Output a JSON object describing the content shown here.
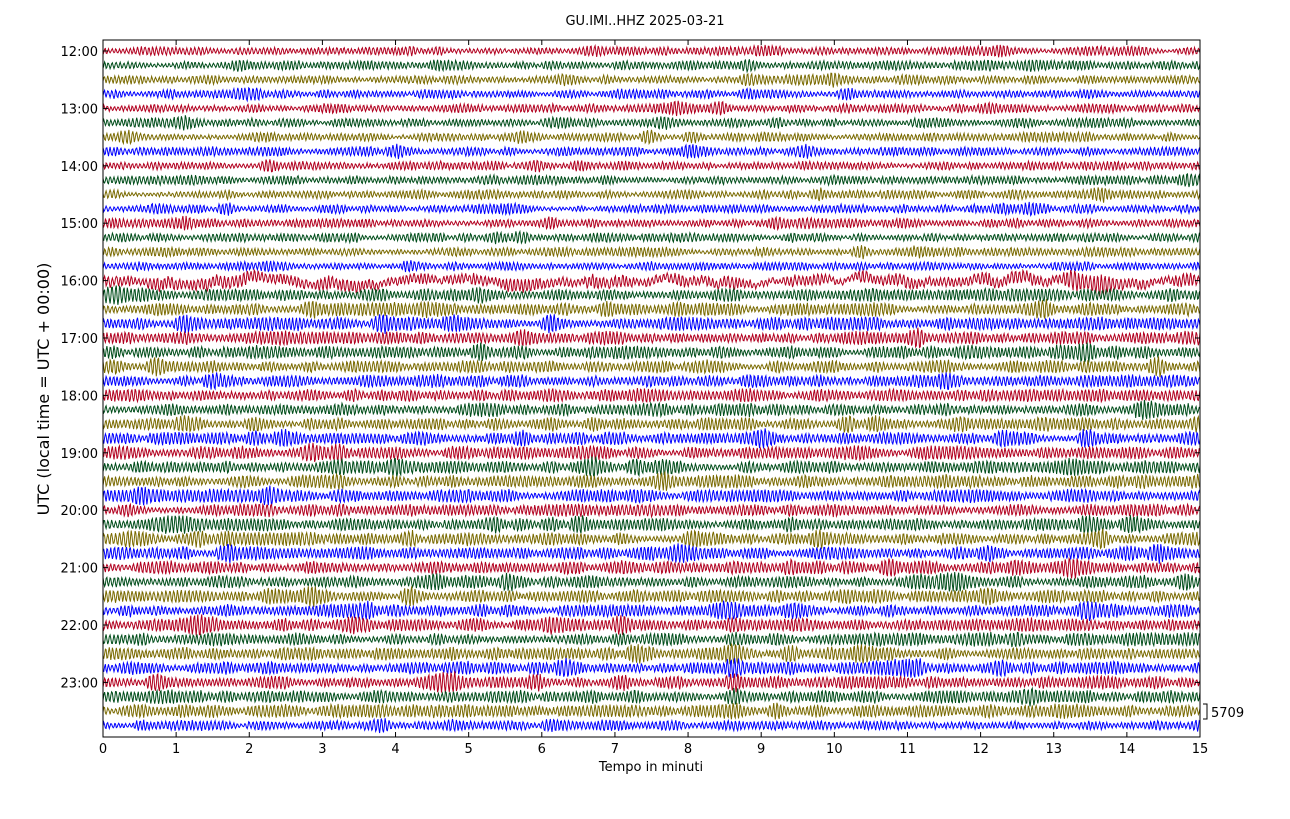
{
  "chart_data": {
    "type": "line",
    "title": "GU.IMI..HHZ 2025-03-21",
    "xlabel": "Tempo in minuti",
    "ylabel": "UTC (local time = UTC + 00:00)",
    "xlim": [
      0,
      15
    ],
    "x_ticks": [
      "0",
      "1",
      "2",
      "3",
      "4",
      "5",
      "6",
      "7",
      "8",
      "9",
      "10",
      "11",
      "12",
      "13",
      "14",
      "15"
    ],
    "y_tick_labels": [
      "12:00",
      "13:00",
      "14:00",
      "15:00",
      "16:00",
      "17:00",
      "18:00",
      "19:00",
      "20:00",
      "21:00",
      "22:00",
      "23:00"
    ],
    "start_time": "12:00",
    "minutes_per_trace": 15,
    "trace_count": 48,
    "trace_colors": [
      "#b2001f",
      "#004d1a",
      "#7a6a00",
      "#0000ff"
    ],
    "scale_label": "5709",
    "grid": false,
    "series_note": "seismogram helicorder traces, one per 15-minute interval"
  }
}
